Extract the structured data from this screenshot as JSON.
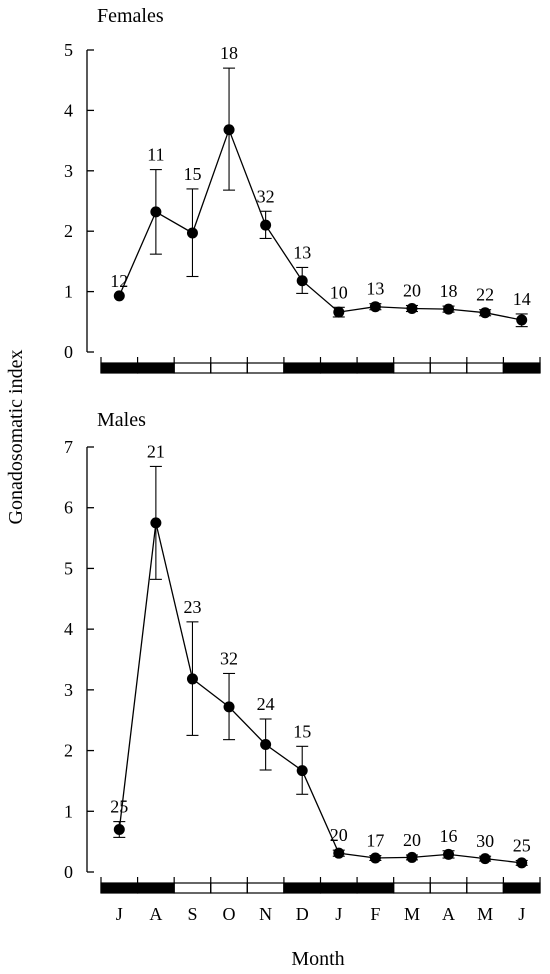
{
  "y_axis_label": "Gonadosomatic index",
  "x_axis_label": "Month",
  "months": [
    "J",
    "A",
    "S",
    "O",
    "N",
    "D",
    "J",
    "F",
    "M",
    "A",
    "M",
    "J"
  ],
  "season_bar": [
    "dark",
    "dark",
    "light",
    "light",
    "light",
    "dark",
    "dark",
    "dark",
    "light",
    "light",
    "light",
    "dark"
  ],
  "chart_data": [
    {
      "type": "line",
      "title": "Females",
      "ylim": [
        0,
        5
      ],
      "yticks": [
        0,
        1,
        2,
        3,
        4,
        5
      ],
      "xlabel": "",
      "ylabel": "Gonadosomatic index",
      "categories": [
        "J",
        "A",
        "S",
        "O",
        "N",
        "D",
        "J",
        "F",
        "M",
        "A",
        "M",
        "J"
      ],
      "values": [
        0.93,
        2.32,
        1.97,
        3.68,
        2.1,
        1.18,
        0.66,
        0.75,
        0.72,
        0.71,
        0.65,
        0.53
      ],
      "error_low": [
        0.93,
        1.62,
        1.25,
        2.68,
        1.88,
        0.97,
        0.58,
        0.7,
        0.67,
        0.66,
        0.6,
        0.42
      ],
      "error_high": [
        0.93,
        3.02,
        2.7,
        4.7,
        2.33,
        1.4,
        0.74,
        0.8,
        0.77,
        0.76,
        0.7,
        0.63
      ],
      "n_labels": [
        "12",
        "11",
        "15",
        "18",
        "32",
        "13",
        "10",
        "13",
        "20",
        "18",
        "22",
        "14"
      ]
    },
    {
      "type": "line",
      "title": "Males",
      "ylim": [
        0,
        7
      ],
      "yticks": [
        0,
        1,
        2,
        3,
        4,
        5,
        6,
        7
      ],
      "xlabel": "Month",
      "ylabel": "Gonadosomatic index",
      "categories": [
        "J",
        "A",
        "S",
        "O",
        "N",
        "D",
        "J",
        "F",
        "M",
        "A",
        "M",
        "J"
      ],
      "values": [
        0.7,
        5.75,
        3.18,
        2.72,
        2.1,
        1.67,
        0.31,
        0.23,
        0.24,
        0.29,
        0.22,
        0.15
      ],
      "error_low": [
        0.57,
        4.82,
        2.25,
        2.18,
        1.68,
        1.28,
        0.26,
        0.19,
        0.2,
        0.23,
        0.18,
        0.11
      ],
      "error_high": [
        0.83,
        6.68,
        4.12,
        3.27,
        2.52,
        2.07,
        0.36,
        0.27,
        0.28,
        0.35,
        0.26,
        0.19
      ],
      "n_labels": [
        "25",
        "21",
        "23",
        "32",
        "24",
        "15",
        "20",
        "17",
        "20",
        "16",
        "30",
        "25"
      ]
    }
  ]
}
